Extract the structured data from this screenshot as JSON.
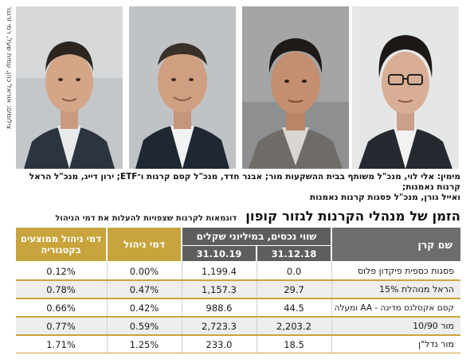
{
  "photo_credit": "צילומים: אוראל כהן, עמית שעל, רמי זרנגר",
  "caption_line1": "מימין: אלי לוי, מנכ\"ל משותף בבית ההשקעות מור; אבנר חדד, מנכ\"ל קסם קרנות ו־ETF; ירון דייג, מנכ\"ל הראל קרנות נאמנות;",
  "caption_line2": "ואייל גורן, מנכ\"ל פסגות קרנות נאמנות",
  "title": "הזמן של מנהלי הקרנות לגזור קופון",
  "subtitle": "דוגמאות לקרנות שצפויות להעלות את דמי הניהול",
  "table": {
    "headers": {
      "fund_name": "שם קרן",
      "assets_group": "שווי נכסים, במיליוני שקלים",
      "date_1": "31.12.18",
      "date_2": "31.10.19",
      "mgmt_fee": "דמי ניהול",
      "avg_fee": "דמי ניהול ממוצעים בקטגוריה"
    },
    "rows": [
      {
        "name": "פסגות כספית פיקדון פלוס",
        "assets_2018": "0.0",
        "assets_2019": "1,199.4",
        "fee": "0.00%",
        "avg_fee": "0.12%"
      },
      {
        "name": "הראל מנוהלת 15%",
        "assets_2018": "29.7",
        "assets_2019": "1,157.3",
        "fee": "0.47%",
        "avg_fee": "0.78%"
      },
      {
        "name": "קסם אקסלנס מדינה - AA ומעלה",
        "assets_2018": "44.5",
        "assets_2019": "988.6",
        "fee": "0.42%",
        "avg_fee": "0.66%"
      },
      {
        "name": "מור 10/90",
        "assets_2018": "2,203.2",
        "assets_2019": "2,723.3",
        "fee": "0.59%",
        "avg_fee": "0.77%"
      },
      {
        "name": "מור נדל\"ן",
        "assets_2018": "18.5",
        "assets_2019": "233.0",
        "fee": "1.25%",
        "avg_fee": "1.71%"
      }
    ]
  },
  "colors": {
    "gold": "#c9a43c",
    "grey_header": "#6d6d6d",
    "row_alt": "#eeeeee"
  },
  "people": [
    "portrait-eli-levi",
    "portrait-avner-hadad",
    "portrait-yaron-dayag",
    "portrait-eyal-goren"
  ]
}
